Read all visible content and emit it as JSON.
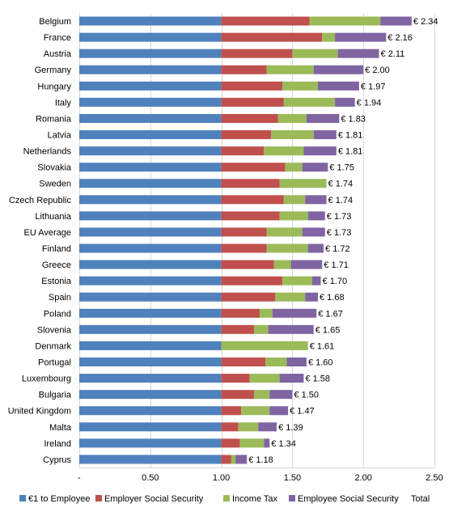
{
  "chart_data": {
    "type": "bar",
    "orientation": "horizontal",
    "stacked": true,
    "xlim": [
      0,
      2.5
    ],
    "x_ticks": [
      {
        "value": 0,
        "label": "-"
      },
      {
        "value": 0.5,
        "label": "0.50"
      },
      {
        "value": 1.0,
        "label": "1.00"
      },
      {
        "value": 1.5,
        "label": "1.50"
      },
      {
        "value": 2.0,
        "label": "2.00"
      },
      {
        "value": 2.5,
        "label": "2.50"
      }
    ],
    "grid": true,
    "legend_position": "bottom",
    "categories": [
      "Belgium",
      "France",
      "Austria",
      "Germany",
      "Hungary",
      "Italy",
      "Romania",
      "Latvia",
      "Netherlands",
      "Slovakia",
      "Sweden",
      "Czech Republic",
      "Lithuania",
      "EU Average",
      "Finland",
      "Greece",
      "Estonia",
      "Spain",
      "Poland",
      "Slovenia",
      "Denmark",
      "Portugal",
      "Luxembourg",
      "Bulgaria",
      "United Kingdom",
      "Malta",
      "Ireland",
      "Cyprus"
    ],
    "series": [
      {
        "name": "€1 to Employee",
        "color": "#4f81bd",
        "values": [
          1,
          1,
          1,
          1,
          1,
          1,
          1,
          1,
          1,
          1,
          1,
          1,
          1,
          1,
          1,
          1,
          1,
          1,
          1,
          1,
          1,
          1,
          1,
          1,
          1,
          1,
          1,
          1
        ]
      },
      {
        "name": "Employer Social Security",
        "color": "#c0504d",
        "values": [
          0.62,
          0.71,
          0.5,
          0.32,
          0.43,
          0.44,
          0.4,
          0.35,
          0.3,
          0.45,
          0.41,
          0.44,
          0.41,
          0.32,
          0.32,
          0.37,
          0.43,
          0.38,
          0.27,
          0.23,
          0.0,
          0.31,
          0.2,
          0.23,
          0.14,
          0.12,
          0.13,
          0.07
        ]
      },
      {
        "name": "Income Tax",
        "color": "#9bbb59",
        "values": [
          0.5,
          0.09,
          0.32,
          0.33,
          0.25,
          0.36,
          0.2,
          0.3,
          0.28,
          0.12,
          0.33,
          0.15,
          0.2,
          0.25,
          0.29,
          0.12,
          0.21,
          0.21,
          0.09,
          0.1,
          0.61,
          0.15,
          0.21,
          0.11,
          0.2,
          0.14,
          0.17,
          0.03
        ]
      },
      {
        "name": "Employee Social Security",
        "color": "#8064a2",
        "values": [
          0.22,
          0.36,
          0.29,
          0.35,
          0.29,
          0.14,
          0.23,
          0.16,
          0.23,
          0.18,
          0.0,
          0.15,
          0.12,
          0.16,
          0.11,
          0.22,
          0.06,
          0.09,
          0.31,
          0.32,
          0.0,
          0.14,
          0.17,
          0.16,
          0.13,
          0.13,
          0.04,
          0.08
        ]
      }
    ],
    "totals_series_name": "Total",
    "totals": [
      "€ 2.34",
      "€ 2.16",
      "€ 2.11",
      "€ 2.00",
      "€ 1.97",
      "€ 1.94",
      "€ 1.83",
      "€ 1.81",
      "€ 1.81",
      "€ 1.75",
      "€ 1.74",
      "€ 1.74",
      "€ 1.73",
      "€ 1.73",
      "€ 1.72",
      "€ 1.71",
      "€ 1.70",
      "€ 1.68",
      "€ 1.67",
      "€ 1.65",
      "€ 1.61",
      "€ 1.60",
      "€ 1.58",
      "€ 1.50",
      "€ 1.47",
      "€ 1.39",
      "€ 1.34",
      "€ 1.18"
    ],
    "total_values": [
      2.34,
      2.16,
      2.11,
      2.0,
      1.97,
      1.94,
      1.83,
      1.81,
      1.81,
      1.75,
      1.74,
      1.74,
      1.73,
      1.73,
      1.72,
      1.71,
      1.7,
      1.68,
      1.67,
      1.65,
      1.61,
      1.6,
      1.58,
      1.5,
      1.47,
      1.39,
      1.34,
      1.18
    ]
  }
}
